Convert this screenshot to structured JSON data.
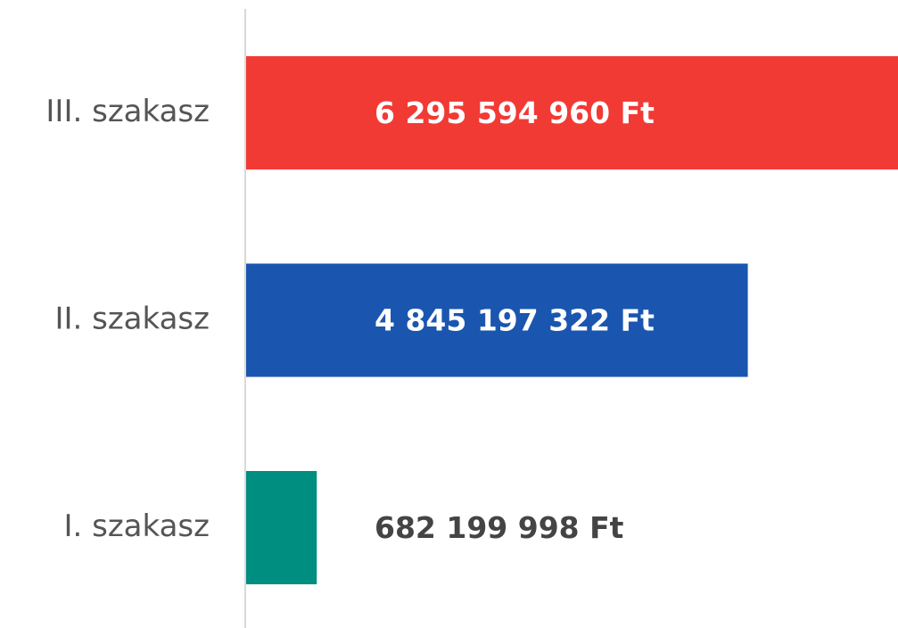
{
  "chart_data": {
    "type": "bar",
    "orientation": "horizontal",
    "categories": [
      "III. szakasz",
      "II. szakasz",
      "I. szakasz"
    ],
    "values": [
      6295594960,
      4845197322,
      682199998
    ],
    "value_labels": [
      "6 295 594 960 Ft",
      "4 845 197 322 Ft",
      "682 199 998 Ft"
    ],
    "colors": [
      "#f23a35",
      "#1a56b0",
      "#008e80"
    ],
    "xlim": [
      0,
      6295594960
    ]
  }
}
